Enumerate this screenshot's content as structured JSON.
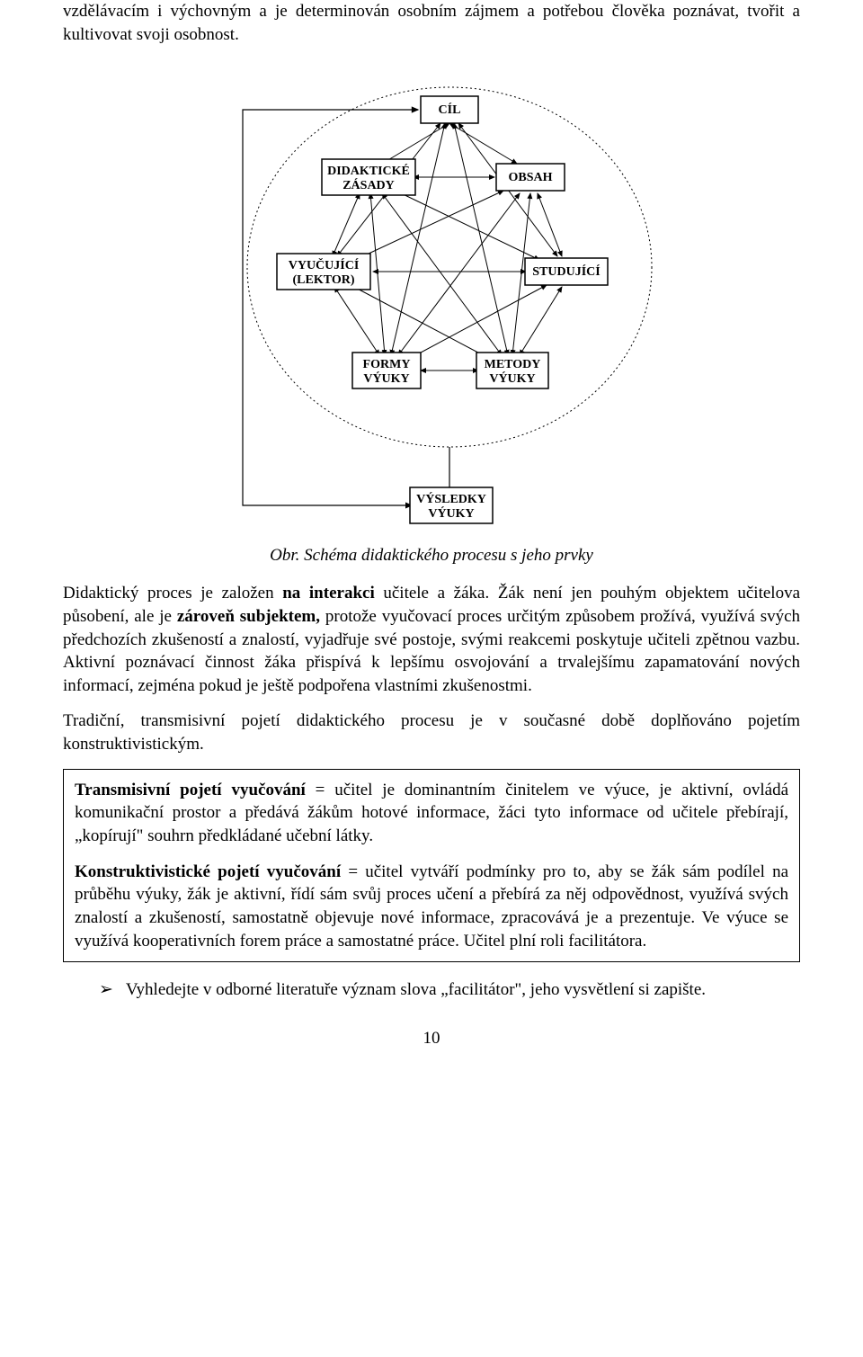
{
  "intro_para": "vzdělávacím i výchovným a je determinován osobním zájmem a potřebou člověka poznávat, tvořit a kultivovat svoji osobnost.",
  "diagram": {
    "nodes": {
      "cil": "CÍL",
      "zasady_l1": "DIDAKTICKÉ",
      "zasady_l2": "ZÁSADY",
      "obsah": "OBSAH",
      "lektor_l1": "VYUČUJÍCÍ",
      "lektor_l2": "(LEKTOR)",
      "studujici": "STUDUJÍCÍ",
      "formy_l1": "FORMY",
      "formy_l2": "VÝUKY",
      "metody_l1": "METODY",
      "metody_l2": "VÝUKY",
      "vysledky_l1": "VÝSLEDKY",
      "vysledky_l2": "VÝUKY"
    },
    "caption_prefix": "Obr. ",
    "caption_text": "Schéma didaktického procesu s jeho prvky"
  },
  "para2_html": "Didaktický proces je založen <b>na interakci</b> učitele a žáka. Žák není jen pouhým objektem učitelova působení, ale je <b>zároveň subjektem,</b> protože vyučovací proces určitým způsobem prožívá, využívá svých předchozích zkušeností a znalostí, vyjadřuje své postoje, svými reakcemi poskytuje učiteli zpětnou vazbu. Aktivní poznávací činnost žáka přispívá k lepšímu osvojování a trvalejšímu zapamatování nových informací, zejména pokud je ještě podpořena vlastními zkušenostmi.",
  "para3": "Tradiční, transmisivní pojetí didaktického procesu je v současné době doplňováno pojetím konstruktivistickým.",
  "box": {
    "p1_html": "<b>Transmisivní pojetí vyučování</b> = učitel je dominantním činitelem ve výuce, je aktivní, ovládá komunikační prostor a předává žákům hotové informace, žáci tyto informace od učitele přebírají, „kopírují\" souhrn předkládané učební látky.",
    "p2_html": "<b>Konstruktivistické pojetí vyučování</b> = učitel vytváří podmínky pro to, aby se žák sám podílel na průběhu výuky, žák je aktivní, řídí sám svůj proces učení a přebírá za něj odpovědnost, využívá svých znalostí a zkušeností, samostatně objevuje nové informace, zpracovává je a prezentuje. Ve výuce se využívá kooperativních forem práce a samostatné práce. Učitel plní roli facilitátora."
  },
  "bullet": {
    "glyph": "➢",
    "text": "Vyhledejte v odborné literatuře význam slova „facilitátor\", jeho vysvětlení si zapište."
  },
  "page_number": "10"
}
